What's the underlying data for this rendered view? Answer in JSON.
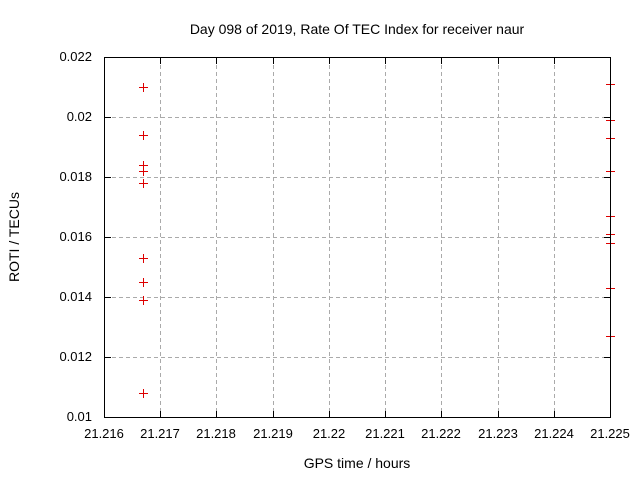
{
  "window": {
    "background": "#ffffff"
  },
  "chart_data": {
    "type": "scatter",
    "title": "Day 098 of 2019, Rate Of TEC Index for receiver naur",
    "xlabel": "GPS time / hours",
    "ylabel": "ROTI / TECUs",
    "xlim": [
      21.216,
      21.225
    ],
    "ylim": [
      0.01,
      0.022
    ],
    "x_ticks": [
      21.216,
      21.217,
      21.218,
      21.219,
      21.22,
      21.221,
      21.222,
      21.223,
      21.224,
      21.225
    ],
    "x_tick_labels": [
      "21.216",
      "21.217",
      "21.218",
      "21.219",
      "21.22",
      "21.221",
      "21.222",
      "21.223",
      "21.224",
      "21.225"
    ],
    "y_ticks": [
      0.01,
      0.012,
      0.014,
      0.016,
      0.018,
      0.02,
      0.022
    ],
    "y_tick_labels": [
      "0.01",
      "0.012",
      "0.014",
      "0.016",
      "0.018",
      "0.02",
      "0.022"
    ],
    "grid": true,
    "legend": "none",
    "marker": "plus",
    "marker_color": "#dd0000",
    "grid_color": "#aaaaaa",
    "border_color": "#000000",
    "series": [
      {
        "name": "ROTI",
        "points": [
          {
            "x": 21.2167,
            "y": 0.021
          },
          {
            "x": 21.2167,
            "y": 0.0194
          },
          {
            "x": 21.2167,
            "y": 0.0184
          },
          {
            "x": 21.2167,
            "y": 0.0182
          },
          {
            "x": 21.2167,
            "y": 0.0178
          },
          {
            "x": 21.2167,
            "y": 0.0153
          },
          {
            "x": 21.2167,
            "y": 0.0145
          },
          {
            "x": 21.2167,
            "y": 0.0139
          },
          {
            "x": 21.2167,
            "y": 0.0108
          },
          {
            "x": 21.225,
            "y": 0.0211
          },
          {
            "x": 21.225,
            "y": 0.0199
          },
          {
            "x": 21.225,
            "y": 0.0193
          },
          {
            "x": 21.225,
            "y": 0.0182
          },
          {
            "x": 21.225,
            "y": 0.0167
          },
          {
            "x": 21.225,
            "y": 0.0161
          },
          {
            "x": 21.225,
            "y": 0.0158
          },
          {
            "x": 21.225,
            "y": 0.0143
          },
          {
            "x": 21.225,
            "y": 0.0127
          }
        ]
      }
    ]
  }
}
